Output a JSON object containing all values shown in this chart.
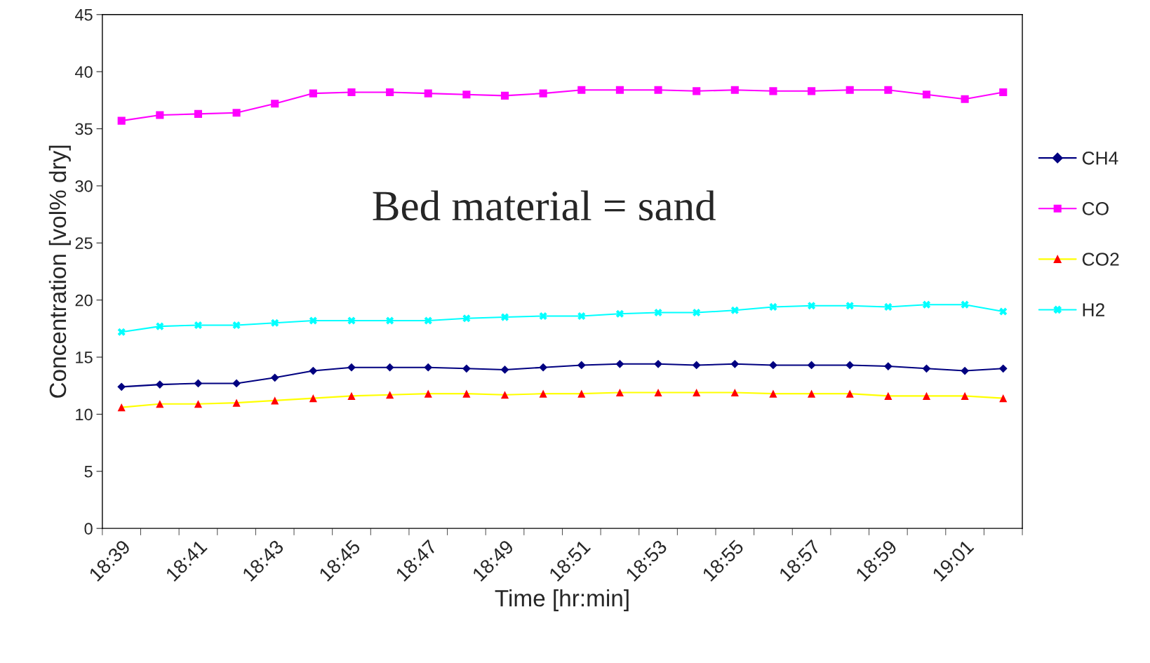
{
  "chart_data": {
    "type": "line",
    "xlabel": "Time [hr:min]",
    "ylabel": "Concentration [vol% dry]",
    "annotations": [
      "Bed material = sand"
    ],
    "categories": [
      "18:39",
      null,
      "18:41",
      null,
      "18:43",
      null,
      "18:45",
      null,
      "18:47",
      null,
      "18:49",
      null,
      "18:51",
      null,
      "18:53",
      null,
      "18:55",
      null,
      "18:57",
      null,
      "18:59",
      null,
      "19:01",
      null
    ],
    "series": [
      {
        "name": "CH4",
        "color": "#000080",
        "marker": "diamond",
        "values": [
          12.4,
          12.6,
          12.7,
          12.7,
          13.2,
          13.8,
          14.1,
          14.1,
          14.1,
          14.0,
          13.9,
          14.1,
          14.3,
          14.4,
          14.4,
          14.3,
          14.4,
          14.3,
          14.3,
          14.3,
          14.2,
          14.0,
          13.8,
          14.0
        ]
      },
      {
        "name": "CO",
        "color": "#ff00ff",
        "marker": "square",
        "values": [
          35.7,
          36.2,
          36.3,
          36.4,
          37.2,
          38.1,
          38.2,
          38.2,
          38.1,
          38.0,
          37.9,
          38.1,
          38.4,
          38.4,
          38.4,
          38.3,
          38.4,
          38.3,
          38.3,
          38.4,
          38.4,
          38.0,
          37.6,
          38.2
        ]
      },
      {
        "name": "CO2",
        "color": "#ffff00",
        "marker": "triangle",
        "colors": [
          "#ff0000",
          "#ff0000",
          "#ff0000",
          "#ff0000",
          "#ff0000",
          "#ff0000",
          "#ff0000",
          "#ff0000",
          "#ff0000",
          "#ff0000",
          "#ff0000",
          "#ff0000",
          "#ff0000",
          "#ff0000",
          "#ff0000",
          "#ff0000",
          "#ff0000",
          "#ff0000",
          "#ff0000",
          "#ff0000",
          "#ff0000",
          "#ff0000",
          "#ff0000",
          "#ff0000"
        ],
        "values": [
          10.6,
          10.9,
          10.9,
          11.0,
          11.2,
          11.4,
          11.6,
          11.7,
          11.8,
          11.8,
          11.7,
          11.8,
          11.8,
          11.9,
          11.9,
          11.9,
          11.9,
          11.8,
          11.8,
          11.8,
          11.6,
          11.6,
          11.6,
          11.4
        ]
      },
      {
        "name": "H2",
        "color": "#00ffff",
        "marker": "cross",
        "values": [
          17.2,
          17.7,
          17.8,
          17.8,
          18.0,
          18.2,
          18.2,
          18.2,
          18.2,
          18.4,
          18.5,
          18.6,
          18.6,
          18.8,
          18.9,
          18.9,
          19.1,
          19.4,
          19.5,
          19.5,
          19.4,
          19.6,
          19.6,
          19.0
        ]
      }
    ],
    "ylim": [
      0,
      45
    ],
    "yticks": [
      0,
      5,
      10,
      15,
      20,
      25,
      30,
      35,
      40,
      45
    ],
    "grid": false,
    "legend": "right"
  }
}
